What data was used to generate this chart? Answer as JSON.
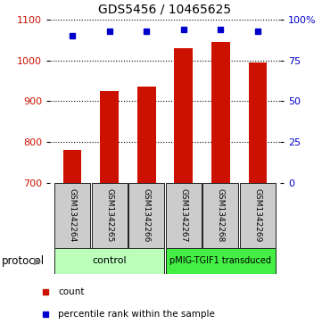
{
  "title": "GDS5456 / 10465625",
  "samples": [
    "GSM1342264",
    "GSM1342265",
    "GSM1342266",
    "GSM1342267",
    "GSM1342268",
    "GSM1342269"
  ],
  "counts": [
    780,
    925,
    935,
    1030,
    1045,
    995
  ],
  "percentiles": [
    90,
    93,
    93,
    94,
    94,
    93
  ],
  "ylim_left": [
    700,
    1100
  ],
  "ylim_right": [
    0,
    100
  ],
  "yticks_left": [
    700,
    800,
    900,
    1000,
    1100
  ],
  "yticks_right": [
    0,
    25,
    50,
    75,
    100
  ],
  "bar_color": "#cc1100",
  "dot_color": "#0000cc",
  "control_color": "#bbffbb",
  "transduced_color": "#44ee44",
  "sample_bg_color": "#cccccc",
  "protocol_label": "protocol",
  "bar_width": 0.5,
  "title_fontsize": 10,
  "tick_fontsize": 8,
  "sample_fontsize": 6.5,
  "legend_fontsize": 7.5,
  "proto_fontsize": 8
}
